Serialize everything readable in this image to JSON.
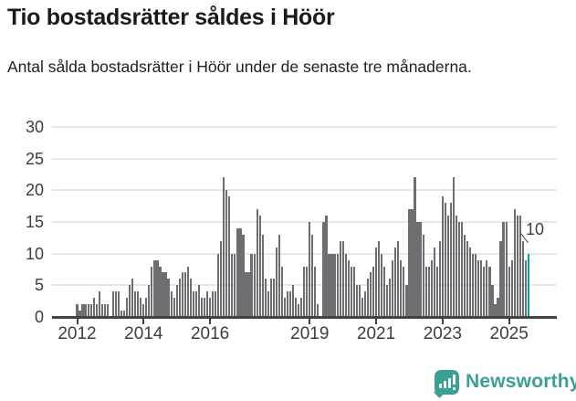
{
  "header": {
    "title": "Tio bostadsrätter såldes i Höör",
    "subtitle": "Antal sålda bostadsrätter i Höör under de senaste tre månaderna."
  },
  "annotation": {
    "last_value_label": "10"
  },
  "branding": {
    "name": "Newsworthy",
    "icon": "newsworthy-speech-bubble-chart-icon"
  },
  "colors": {
    "bar": "#6e6d72",
    "highlight_bar": "#00a0a1",
    "gridline": "#e7e7e7",
    "axis": "#424242",
    "text": "#3d3d3d",
    "brand": "#3aa094"
  },
  "chart_data": {
    "type": "bar",
    "title": "Tio bostadsrätter såldes i Höör",
    "subtitle": "Antal sålda bostadsrätter i Höör under de senaste tre månaderna.",
    "x_unit": "month",
    "x_start": "2012-01",
    "x_end": "2025-08",
    "ylim": [
      0,
      30
    ],
    "y_ticks": [
      0,
      5,
      10,
      15,
      20,
      25,
      30
    ],
    "grid": "horizontal",
    "x_ticks": [
      {
        "label": "2012",
        "month_index": 0
      },
      {
        "label": "2014",
        "month_index": 24
      },
      {
        "label": "2016",
        "month_index": 48
      },
      {
        "label": "2019",
        "month_index": 84
      },
      {
        "label": "2021",
        "month_index": 108
      },
      {
        "label": "2023",
        "month_index": 132
      },
      {
        "label": "2025",
        "month_index": 156
      }
    ],
    "series": [
      {
        "name": "Antal sålda bostadsrätter, rullande tre månader",
        "values": [
          2,
          1,
          2,
          2,
          2,
          2,
          3,
          2,
          4,
          2,
          2,
          2,
          0,
          4,
          4,
          4,
          1,
          1,
          3,
          5,
          6,
          4,
          4,
          3,
          2,
          3,
          5,
          8,
          9,
          9,
          8,
          7,
          7,
          6,
          4,
          3,
          5,
          6,
          7,
          7,
          8,
          6,
          4,
          4,
          5,
          3,
          3,
          4,
          3,
          4,
          4,
          10,
          12,
          22,
          20,
          19,
          10,
          10,
          14,
          14,
          13,
          7,
          7,
          10,
          10,
          17,
          16,
          13,
          6,
          4,
          6,
          6,
          11,
          13,
          8,
          3,
          4,
          4,
          5,
          3,
          2,
          3,
          8,
          8,
          15,
          13,
          8,
          2,
          0,
          15,
          16,
          10,
          10,
          10,
          10,
          12,
          12,
          10,
          9,
          8,
          8,
          5,
          5,
          3,
          4,
          6,
          7,
          8,
          11,
          12,
          10,
          8,
          5,
          6,
          9,
          11,
          12,
          9,
          8,
          5,
          17,
          17,
          22,
          15,
          15,
          13,
          8,
          8,
          9,
          11,
          8,
          12,
          19,
          18,
          16,
          18,
          22,
          16,
          15,
          15,
          13,
          12,
          11,
          10,
          10,
          9,
          9,
          8,
          9,
          8,
          5,
          2,
          3,
          12,
          15,
          15,
          8,
          9,
          17,
          16,
          16,
          12,
          9,
          10
        ]
      }
    ],
    "highlight_last_bar": {
      "value": 10,
      "color": "#00a0a1",
      "label": "10"
    }
  }
}
